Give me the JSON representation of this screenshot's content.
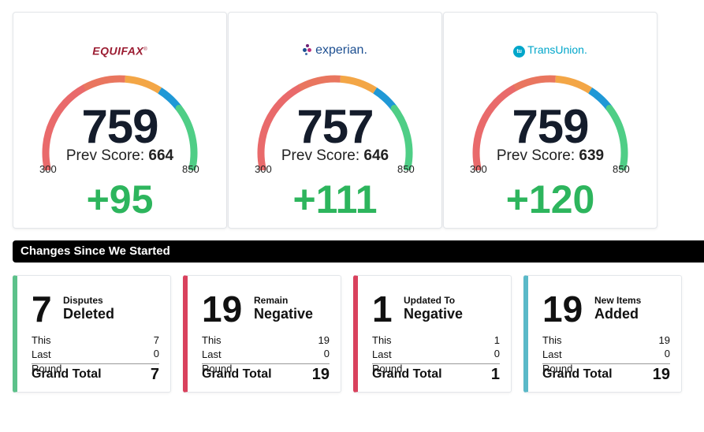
{
  "bureaus": [
    {
      "name": "EQUIFAX",
      "score": "759",
      "prev_label": "Prev Score:",
      "prev_value": "664",
      "min": "300",
      "max": "850",
      "delta": "+95"
    },
    {
      "name": "experian",
      "score": "757",
      "prev_label": "Prev Score:",
      "prev_value": "646",
      "min": "300",
      "max": "850",
      "delta": "+111"
    },
    {
      "name": "TransUnion",
      "score": "759",
      "prev_label": "Prev Score:",
      "prev_value": "639",
      "min": "300",
      "max": "850",
      "delta": "+120"
    }
  ],
  "gauge_colors": [
    "#e96a6b",
    "#e9765f",
    "#f3a646",
    "#1f98d6",
    "#4fce86"
  ],
  "section_title": "Changes Since We Started",
  "changes": [
    {
      "number": "7",
      "label_small": "Disputes",
      "label_big": "Deleted",
      "accent": "#5cc18a",
      "this_label": "This",
      "this_value": "7",
      "last_label": "Last Round",
      "last_value": "0",
      "grand_label": "Grand Total",
      "grand_value": "7"
    },
    {
      "number": "19",
      "label_small": "Remain",
      "label_big": "Negative",
      "accent": "#d9415d",
      "this_label": "This",
      "this_value": "19",
      "last_label": "Last Round",
      "last_value": "0",
      "grand_label": "Grand Total",
      "grand_value": "19"
    },
    {
      "number": "1",
      "label_small": "Updated To",
      "label_big": "Negative",
      "accent": "#d9415d",
      "this_label": "This",
      "this_value": "1",
      "last_label": "Last Round",
      "last_value": "0",
      "grand_label": "Grand Total",
      "grand_value": "1"
    },
    {
      "number": "19",
      "label_small": "New Items",
      "label_big": "Added",
      "accent": "#5ab9c8",
      "this_label": "This",
      "this_value": "19",
      "last_label": "Last Round",
      "last_value": "0",
      "grand_label": "Grand Total",
      "grand_value": "19"
    }
  ]
}
